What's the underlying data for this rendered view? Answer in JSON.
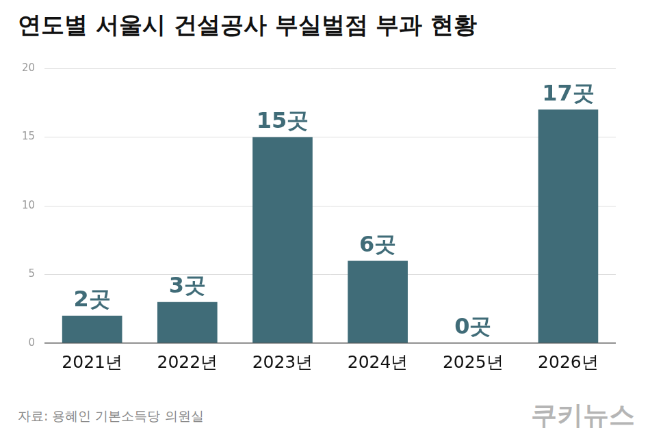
{
  "chart_data": {
    "type": "bar",
    "title": "연도별 서울시 건설공사 부실벌점 부과 현황",
    "categories": [
      "2021년",
      "2022년",
      "2023년",
      "2024년",
      "2025년",
      "2026년"
    ],
    "values": [
      2,
      3,
      15,
      6,
      0,
      17
    ],
    "value_labels": [
      "2곳",
      "3곳",
      "15곳",
      "6곳",
      "0곳",
      "17곳"
    ],
    "color": "#406c78",
    "ylim": [
      0,
      20
    ],
    "yticks": [
      0,
      5,
      10,
      15,
      20
    ],
    "grid": true,
    "data_labels": true,
    "source": "자료: 용혜인 기본소득당 의원실",
    "credit": "쿠키뉴스"
  }
}
